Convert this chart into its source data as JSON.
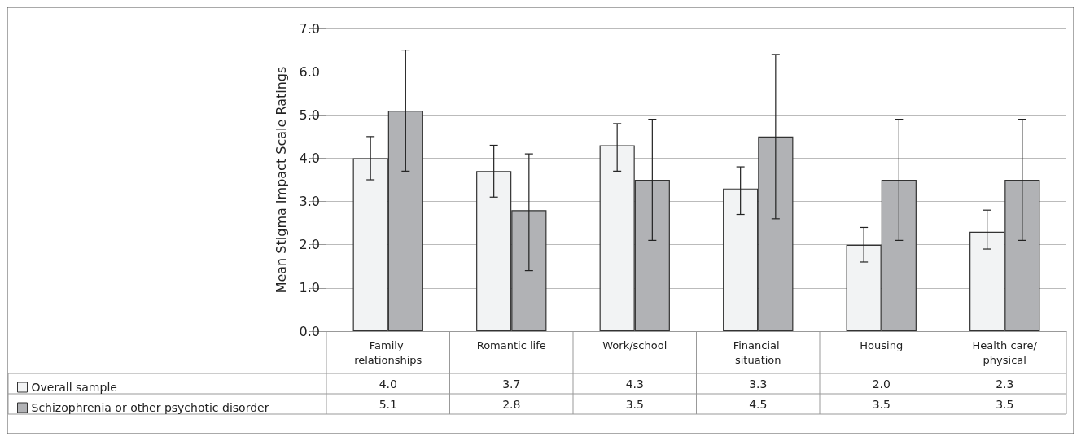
{
  "chart_data": {
    "type": "bar",
    "ylabel": "Mean Stigma Impact Scale Ratings",
    "categories": [
      "Family relationships",
      "Romantic life",
      "Work/school",
      "Financial situation",
      "Housing",
      "Health care/physical"
    ],
    "series": [
      {
        "name": "Overall sample",
        "color": "#f2f3f4",
        "values": [
          4.0,
          3.7,
          4.3,
          3.3,
          2.0,
          2.3
        ],
        "value_labels": [
          "4.0",
          "3.7",
          "4.3",
          "3.3",
          "2.0",
          "2.3"
        ],
        "errors": [
          [
            3.5,
            4.5
          ],
          [
            3.1,
            4.3
          ],
          [
            3.7,
            4.8
          ],
          [
            2.7,
            3.8
          ],
          [
            1.6,
            2.4
          ],
          [
            1.9,
            2.8
          ]
        ]
      },
      {
        "name": "Schizophrenia or other psychotic disorder",
        "color": "#b1b2b5",
        "values": [
          5.1,
          2.8,
          3.5,
          4.5,
          3.5,
          3.5
        ],
        "value_labels": [
          "5.1",
          "2.8",
          "3.5",
          "4.5",
          "3.5",
          "3.5"
        ],
        "errors": [
          [
            3.7,
            6.5
          ],
          [
            1.4,
            4.1
          ],
          [
            2.1,
            4.9
          ],
          [
            2.6,
            6.4
          ],
          [
            2.1,
            4.9
          ],
          [
            2.1,
            4.9
          ]
        ]
      }
    ],
    "ylim": [
      0,
      7
    ],
    "yticks": [
      {
        "value": 0,
        "label": "0.0"
      },
      {
        "value": 1,
        "label": "1.0"
      },
      {
        "value": 2,
        "label": "2.0"
      },
      {
        "value": 3,
        "label": "3.0"
      },
      {
        "value": 4,
        "label": "4.0"
      },
      {
        "value": 5,
        "label": "5.0"
      },
      {
        "value": 6,
        "label": "6.0"
      },
      {
        "value": 7,
        "label": "7.0"
      }
    ],
    "grid": "y",
    "legend": "bottom left"
  }
}
